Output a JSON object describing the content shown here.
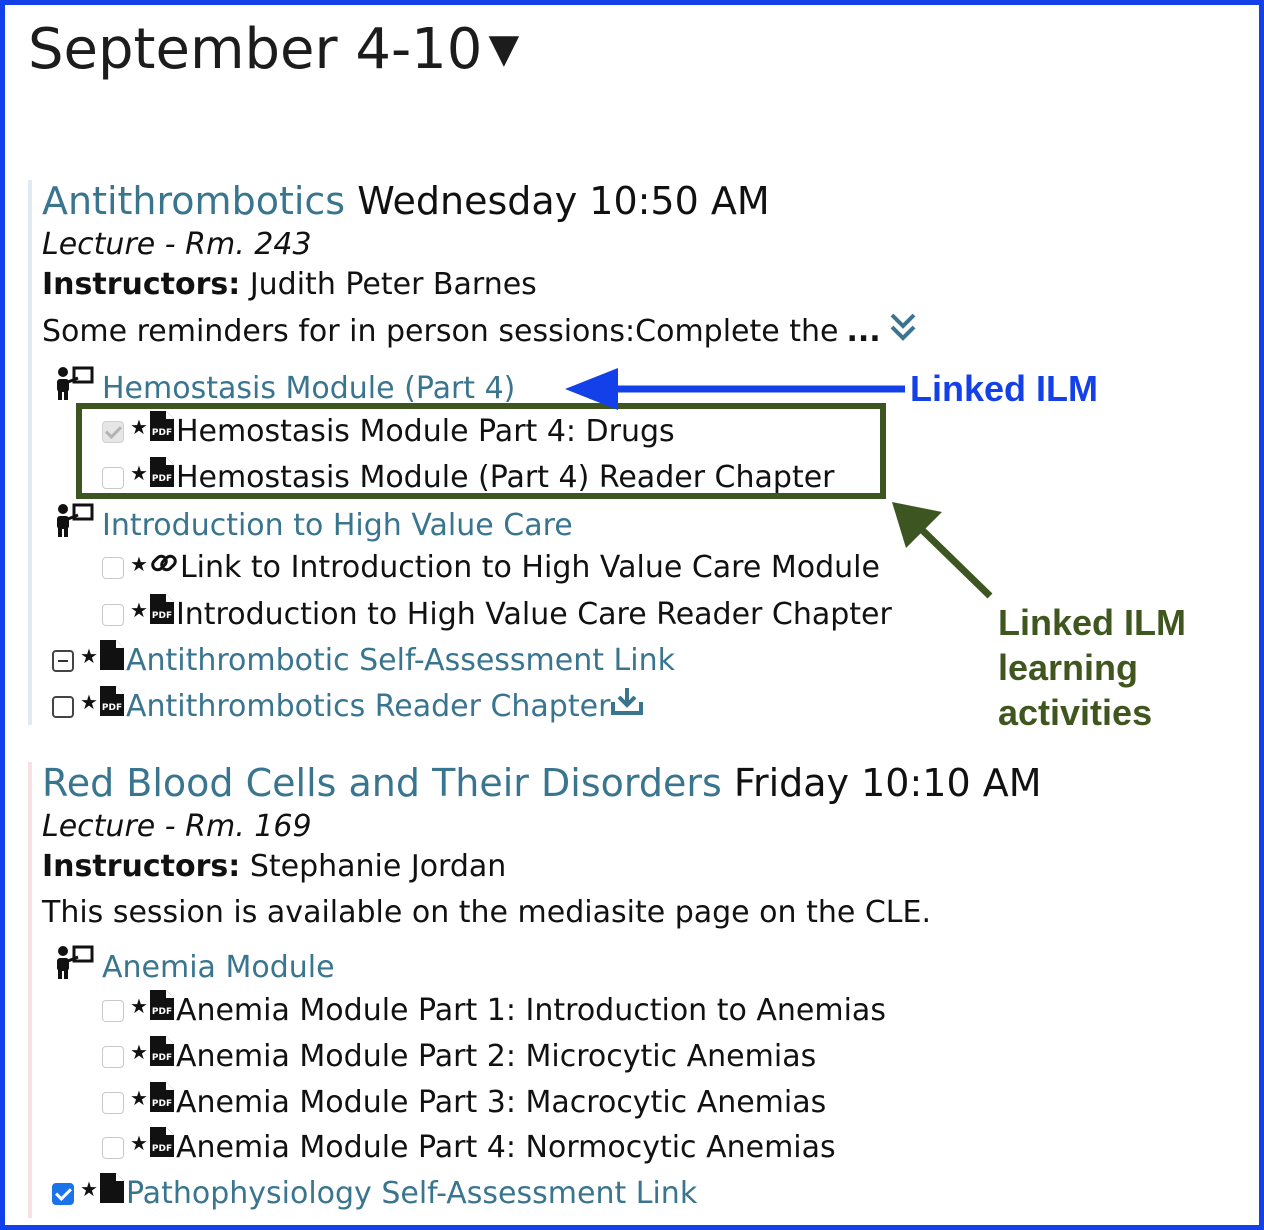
{
  "week": {
    "title": "September 4-10",
    "caret": "▼"
  },
  "sessions": [
    {
      "title": "Antithrombotics",
      "time": "Wednesday 10:50 AM",
      "location": "Lecture - Rm. 243",
      "instructors_label": "Instructors:",
      "instructors": "Judith Peter Barnes",
      "note": "Some reminders for in person sessions:Complete the",
      "note_more": "...",
      "modules": [
        {
          "title": "Hemostasis Module (Part 4)",
          "items": [
            {
              "label": "Hemostasis Module Part 4: Drugs",
              "type": "pdf",
              "state": "disabled-checked"
            },
            {
              "label": "Hemostasis Module (Part 4) Reader Chapter",
              "type": "pdf",
              "state": "unchecked"
            }
          ]
        },
        {
          "title": "Introduction to High Value Care",
          "items": [
            {
              "label": "Link to Introduction to High Value Care Module",
              "type": "link",
              "state": "unchecked"
            },
            {
              "label": "Introduction to High Value Care Reader Chapter",
              "type": "pdf",
              "state": "unchecked"
            }
          ]
        }
      ],
      "activities": [
        {
          "label": "Antithrombotic Self-Assessment Link",
          "type": "file",
          "state": "partial"
        },
        {
          "label": "Antithrombotics Reader Chapter",
          "type": "pdf",
          "state": "unchecked",
          "download": true
        }
      ]
    },
    {
      "title": "Red Blood Cells and Their Disorders",
      "time": "Friday 10:10 AM",
      "location": "Lecture - Rm. 169",
      "instructors_label": "Instructors:",
      "instructors": "Stephanie Jordan",
      "note": "This session is available on the mediasite page on the CLE.",
      "modules": [
        {
          "title": "Anemia Module",
          "items": [
            {
              "label": "Anemia Module Part 1: Introduction to Anemias",
              "type": "pdf",
              "state": "unchecked"
            },
            {
              "label": "Anemia Module Part 2: Microcytic Anemias",
              "type": "pdf",
              "state": "unchecked"
            },
            {
              "label": "Anemia Module Part 3: Macrocytic Anemias",
              "type": "pdf",
              "state": "unchecked"
            },
            {
              "label": "Anemia Module Part 4: Normocytic Anemias",
              "type": "pdf",
              "state": "unchecked"
            }
          ]
        }
      ],
      "activities": [
        {
          "label": "Pathophysiology Self-Assessment Link",
          "type": "file",
          "state": "checked"
        }
      ]
    }
  ],
  "annotations": {
    "linked_ilm": "Linked ILM",
    "linked_ilm_activities": "Linked ILM learning activities"
  },
  "icons": [
    "presenter-icon",
    "pdf-icon",
    "link-icon",
    "file-icon",
    "download-icon",
    "expand-chevron-icon",
    "star-icon"
  ],
  "colors": {
    "link": "#3a7590",
    "frame": "#1340e8",
    "annotation_green": "#40561f",
    "checkbox_checked": "#1a73e8"
  }
}
